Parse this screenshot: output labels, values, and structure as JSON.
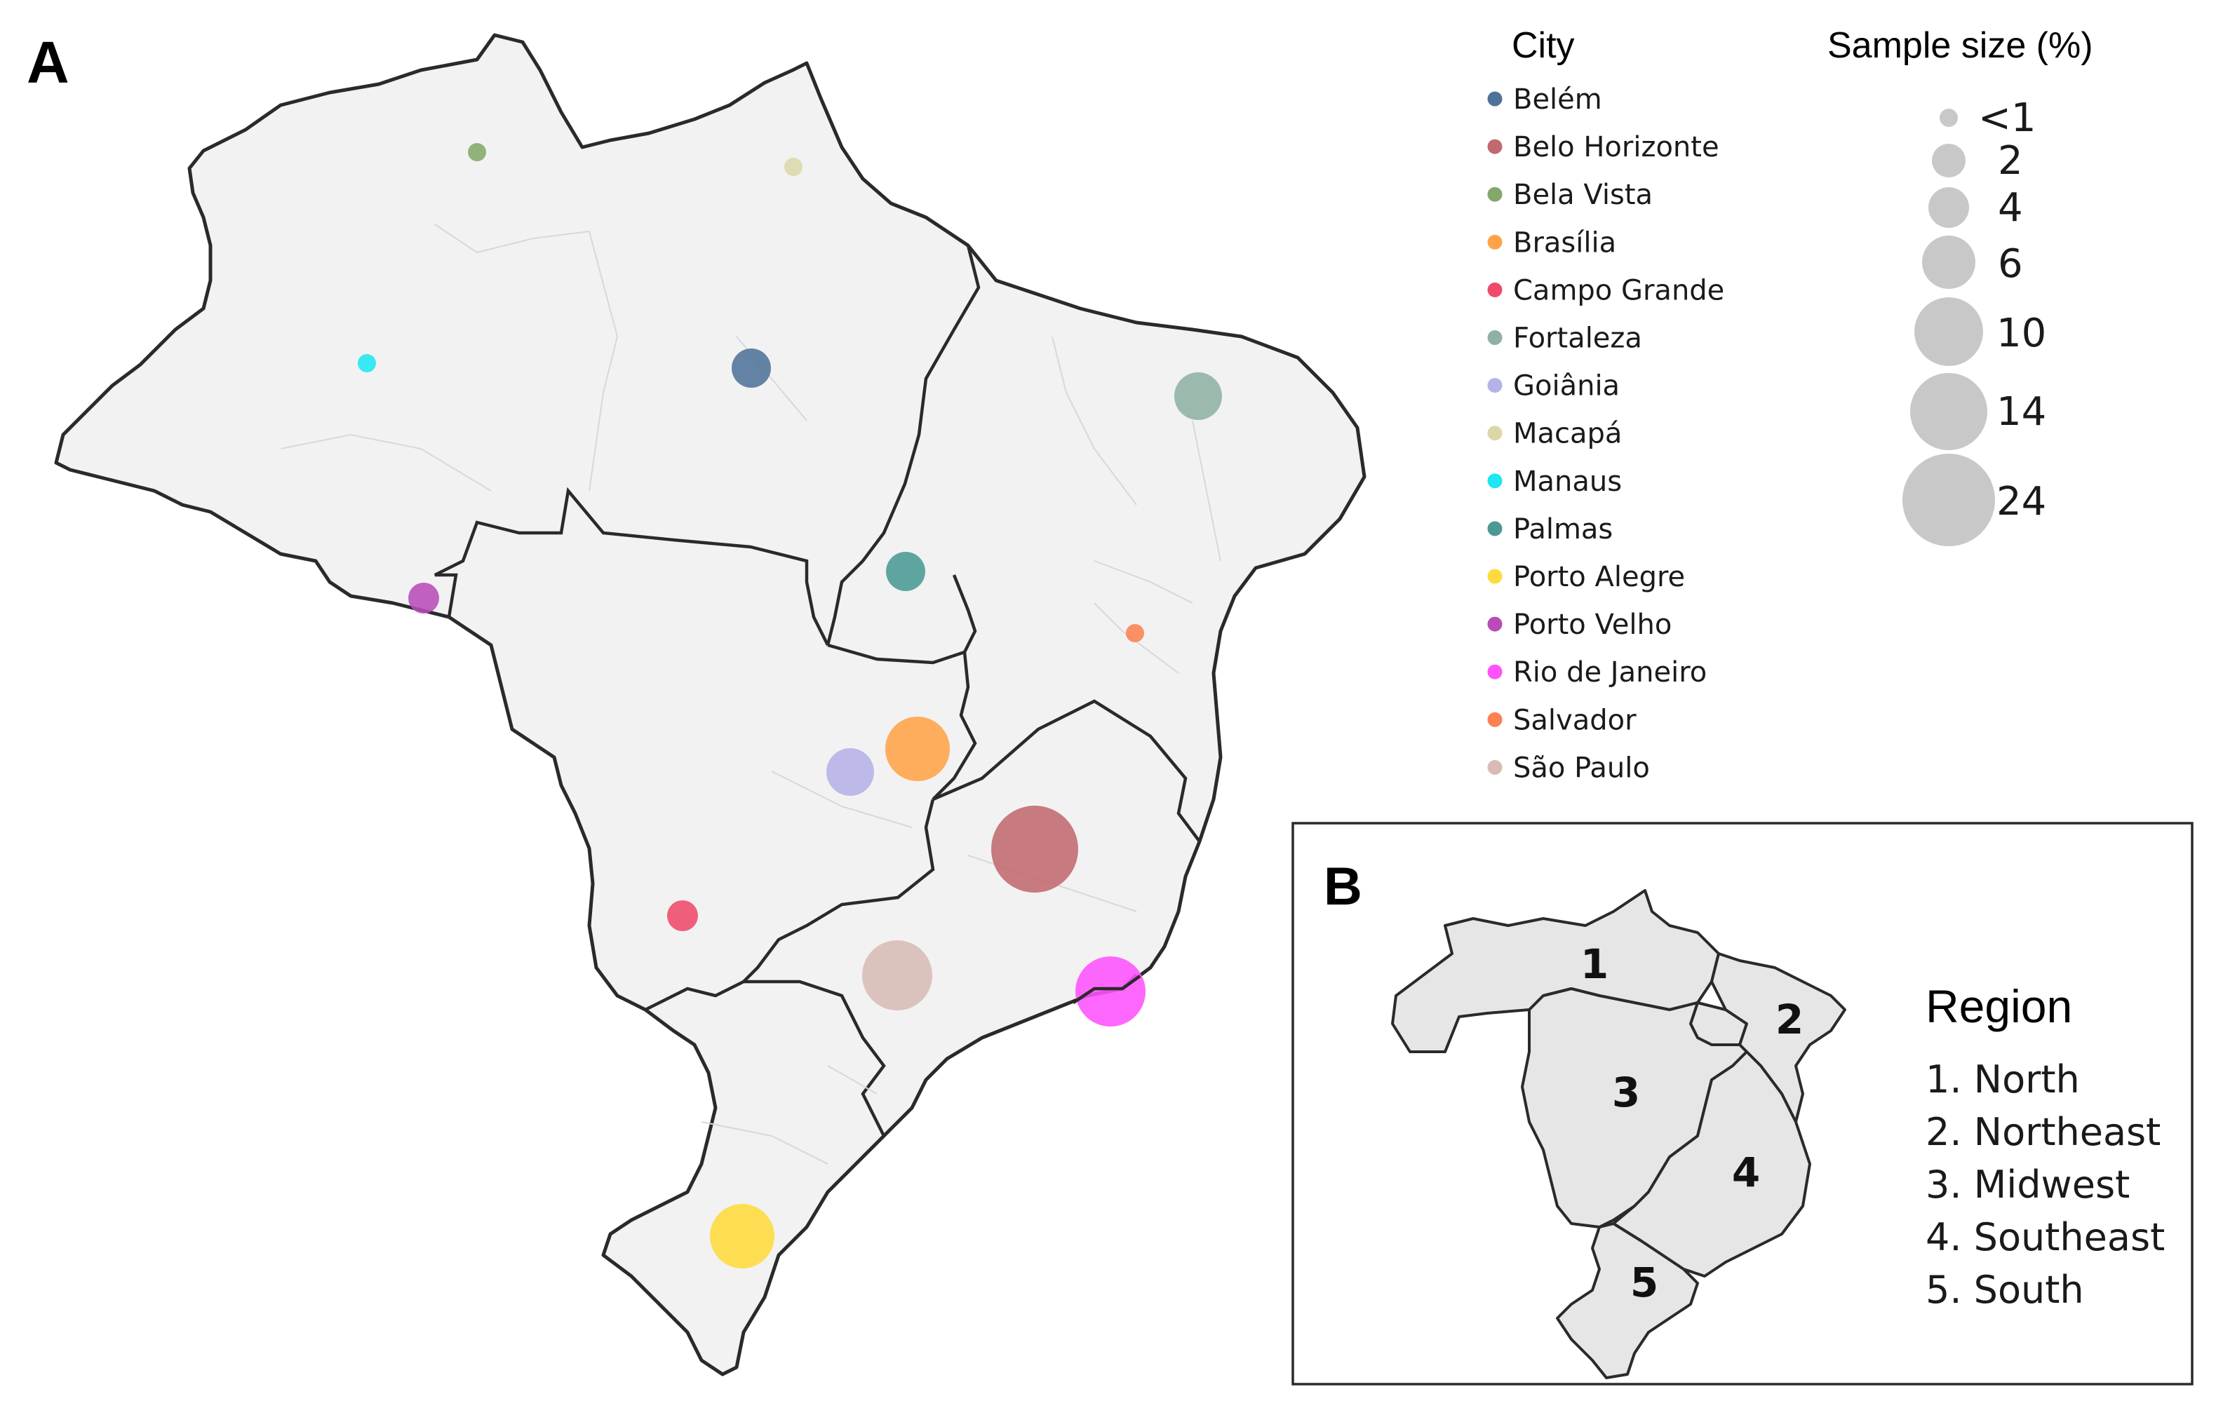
{
  "panels": {
    "a_label": "A",
    "b_label": "B"
  },
  "city_legend": {
    "title": "City",
    "items": [
      {
        "name": "Belém",
        "color": "#4f7398"
      },
      {
        "name": "Belo Horizonte",
        "color": "#c0696f"
      },
      {
        "name": "Bela Vista",
        "color": "#84a86b"
      },
      {
        "name": "Brasília",
        "color": "#ffa348"
      },
      {
        "name": "Campo Grande",
        "color": "#ee4a6a"
      },
      {
        "name": "Fortaleza",
        "color": "#8fb1a4"
      },
      {
        "name": "Goiânia",
        "color": "#b5b2e8"
      },
      {
        "name": "Macapá",
        "color": "#dcd7a8"
      },
      {
        "name": "Manaus",
        "color": "#1ee6f3"
      },
      {
        "name": "Palmas",
        "color": "#4a9a93"
      },
      {
        "name": "Porto Alegre",
        "color": "#fedb3c"
      },
      {
        "name": "Porto Velho",
        "color": "#b84bb7"
      },
      {
        "name": "Rio de Janeiro",
        "color": "#fe52fe"
      },
      {
        "name": "Salvador",
        "color": "#fb8250"
      },
      {
        "name": "São Paulo",
        "color": "#d8bbb5"
      }
    ]
  },
  "size_legend": {
    "title": "Sample size (%)",
    "items": [
      "<1",
      "2",
      "4",
      "6",
      "10",
      "14",
      "24"
    ],
    "color": "#c8c8c8"
  },
  "cities": [
    {
      "name": "Bela Vista",
      "color": "#84a86b",
      "size": "<1"
    },
    {
      "name": "Macapá",
      "color": "#dcd7a8",
      "size": "<1"
    },
    {
      "name": "Manaus",
      "color": "#1ee6f3",
      "size": "<1"
    },
    {
      "name": "Belém",
      "color": "#4f7398",
      "size": "4"
    },
    {
      "name": "Fortaleza",
      "color": "#8fb1a4",
      "size": "6"
    },
    {
      "name": "Palmas",
      "color": "#4a9a93",
      "size": "4"
    },
    {
      "name": "Porto Velho",
      "color": "#b84bb7",
      "size": "2"
    },
    {
      "name": "Salvador",
      "color": "#fb8250",
      "size": "<1"
    },
    {
      "name": "Brasília",
      "color": "#ffa348",
      "size": "10"
    },
    {
      "name": "Goiânia",
      "color": "#b5b2e8",
      "size": "6"
    },
    {
      "name": "Belo Horizonte",
      "color": "#c0696f",
      "size": "24"
    },
    {
      "name": "Campo Grande",
      "color": "#ee4a6a",
      "size": "2"
    },
    {
      "name": "São Paulo",
      "color": "#d8bbb5",
      "size": "14"
    },
    {
      "name": "Rio de Janeiro",
      "color": "#fe52fe",
      "size": "14"
    },
    {
      "name": "Porto Alegre",
      "color": "#fedb3c",
      "size": "10"
    }
  ],
  "inset": {
    "region_numbers": [
      "1",
      "2",
      "3",
      "4",
      "5"
    ],
    "legend_title": "Region",
    "items": [
      "1. North",
      "2. Northeast",
      "3. Midwest",
      "4. Southeast",
      "5. South"
    ]
  }
}
